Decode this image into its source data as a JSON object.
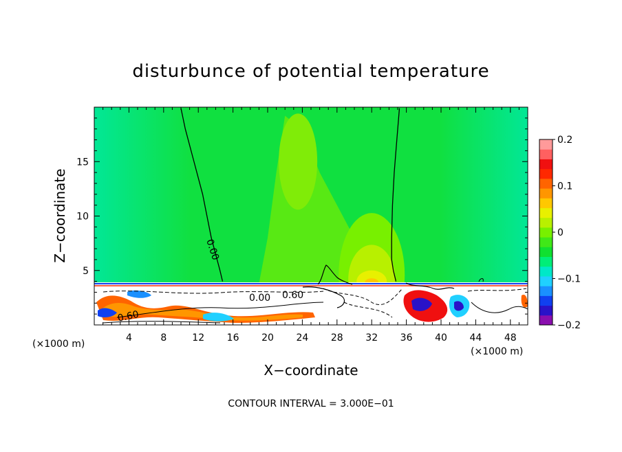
{
  "chart_data": {
    "type": "heatmap",
    "title": "disturbunce of potential temperature",
    "xlabel": "X−coordinate",
    "ylabel": "Z−coordinate",
    "x_unit_label": "(×1000 m)",
    "x_unit_label_right": "(×1000 m)",
    "xlim": [
      0,
      50
    ],
    "ylim": [
      0,
      20
    ],
    "x_ticks": [
      4,
      8,
      12,
      16,
      20,
      24,
      28,
      32,
      36,
      40,
      44,
      48
    ],
    "y_ticks": [
      5,
      10,
      15
    ],
    "colorbar": {
      "range": [
        -0.2,
        0.2
      ],
      "tick_labels": [
        "0.2",
        "0.1",
        "0",
        "−0.1",
        "−0.2"
      ],
      "tick_values": [
        0.2,
        0.1,
        0,
        -0.1,
        -0.2
      ],
      "colors": [
        "#8a0fae",
        "#2a12c8",
        "#1040f0",
        "#1a90ff",
        "#20d0ff",
        "#00e8c8",
        "#00ee78",
        "#10e030",
        "#40e818",
        "#78f000",
        "#b8f000",
        "#e8f000",
        "#ffc800",
        "#ff9600",
        "#ff6400",
        "#ff2800",
        "#f01010",
        "#ff6060",
        "#ff9a9a"
      ]
    },
    "contour_labels": [
      "0.00",
      "0.00",
      "0.60",
      "0.60"
    ],
    "background_value": 0,
    "features": [
      {
        "name": "zero-contour-left",
        "x": [
          10,
          10.5,
          11.5,
          12.5,
          13,
          13.5,
          14,
          14.5,
          14.8
        ],
        "y": [
          19.9,
          18,
          15,
          12,
          10,
          8,
          6.5,
          5,
          4
        ]
      },
      {
        "name": "zero-contour-right",
        "x": [
          35.2,
          34.9,
          34.6,
          34.4,
          34.3,
          34.3,
          34.5,
          34.8
        ],
        "y": [
          19.9,
          17,
          14,
          11,
          8,
          6,
          5,
          4
        ]
      },
      {
        "name": "positive-plume",
        "x": [
          19,
          20,
          21,
          22,
          24,
          26,
          28,
          30,
          31
        ],
        "y": [
          3.8,
          8,
          14,
          19.2,
          18,
          14,
          11,
          8,
          6
        ]
      },
      {
        "name": "surface-maximum",
        "x": [
          30,
          32,
          34
        ],
        "y": [
          4.6,
          4.9,
          4.5
        ]
      }
    ]
  },
  "contour_interval_text": "CONTOUR INTERVAL = 3.000E−01"
}
